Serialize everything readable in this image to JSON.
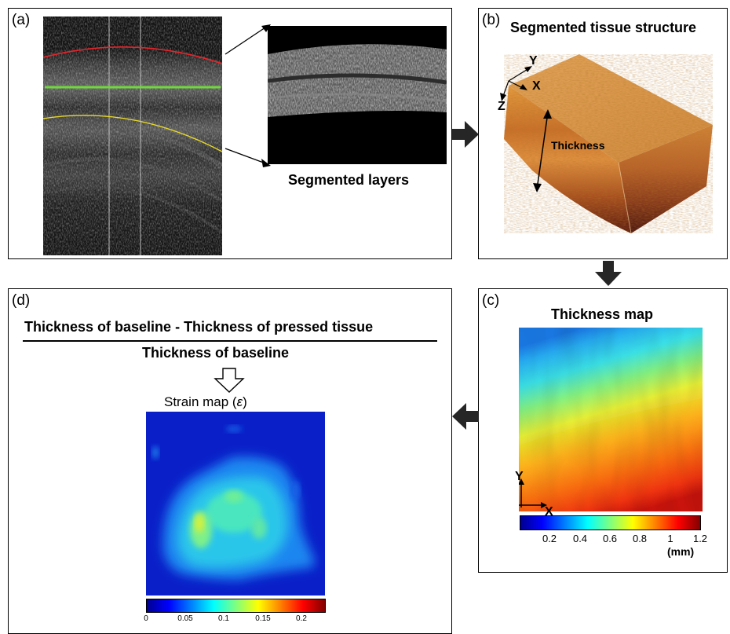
{
  "panel_a": {
    "label": "(a)",
    "caption": "Segmented layers"
  },
  "panel_b": {
    "label": "(b)",
    "title": "Segmented tissue structure",
    "axis_x": "X",
    "axis_y": "Y",
    "axis_z": "Z",
    "thickness_label": "Thickness"
  },
  "panel_c": {
    "label": "(c)",
    "title": "Thickness map",
    "axis_x": "X",
    "axis_y": "Y",
    "colorbar_ticks": [
      "0.2",
      "0.4",
      "0.6",
      "0.8",
      "1",
      "1.2"
    ],
    "colorbar_unit": "(mm)",
    "colorbar_range": [
      0.0,
      1.2
    ]
  },
  "panel_d": {
    "label": "(d)",
    "numerator": "Thickness of baseline - Thickness of pressed tissue",
    "denominator": "Thickness of baseline",
    "title": "Strain map (",
    "title_symbol": "ε",
    "title_end": ")",
    "colorbar_ticks": [
      "0",
      "0.05",
      "0.1",
      "0.15",
      "0.2"
    ],
    "colorbar_range": [
      0,
      0.23
    ]
  },
  "colors": {
    "red_boundary": "#e8242a",
    "green_boundary": "#6fd93a",
    "yellow_boundary": "#e8d92a",
    "arrow": "#262626"
  },
  "icons": [
    "right-arrow-icon",
    "down-arrow-icon",
    "left-arrow-icon",
    "hollow-down-arrow-icon"
  ]
}
